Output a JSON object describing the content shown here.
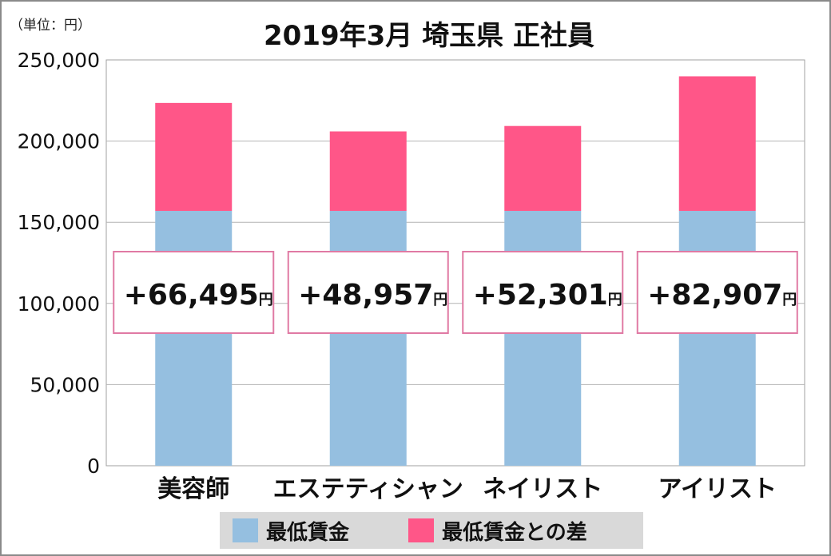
{
  "chart_data": {
    "type": "bar",
    "stacked": true,
    "title": "2019年3月 埼玉県 正社員",
    "unit_note": "（単位：円）",
    "categories": [
      "美容師",
      "エステティシャン",
      "ネイリスト",
      "アイリスト"
    ],
    "series": [
      {
        "name": "最低賃金",
        "color": "#95bfe0",
        "values": [
          157000,
          157000,
          157000,
          157000
        ]
      },
      {
        "name": "最低賃金との差",
        "color": "#ff5688",
        "values": [
          66495,
          48957,
          52301,
          82907
        ]
      }
    ],
    "value_labels": [
      {
        "main": "+66,495",
        "unit": "円"
      },
      {
        "main": "+48,957",
        "unit": "円"
      },
      {
        "main": "+52,301",
        "unit": "円"
      },
      {
        "main": "+82,907",
        "unit": "円"
      }
    ],
    "ylim": [
      0,
      250000
    ],
    "yticks": [
      0,
      50000,
      100000,
      150000,
      200000,
      250000
    ],
    "ytick_labels": [
      "0",
      "50,000",
      "100,000",
      "150,000",
      "200,000",
      "250,000"
    ],
    "grid": true,
    "legend_position": "bottom",
    "label_box_border_color": "#e07aa4"
  }
}
